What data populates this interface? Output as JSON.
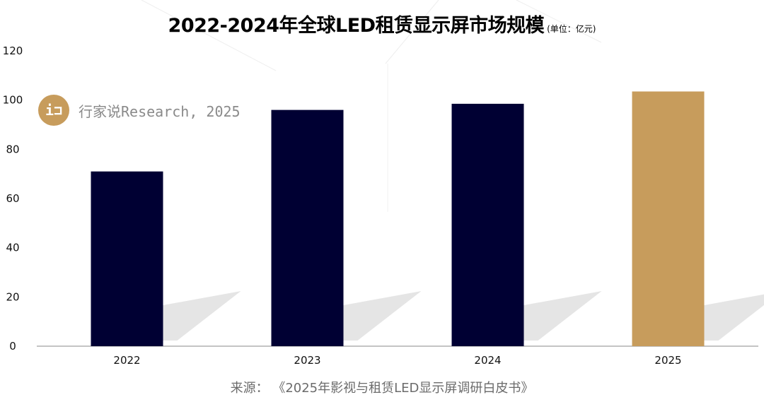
{
  "title": {
    "main": "2022-2024年全球LED租赁显示屏市场规模",
    "unit": "(单位：亿元)"
  },
  "watermark": {
    "logo_text": "i⊐",
    "text": "行家说Research, 2025"
  },
  "source": "来源：  《2025年影视与租赁LED显示屏调研白皮书》",
  "colors": {
    "bar": "#000033",
    "bar_highlight": "#c79c5c",
    "axis": "#888888",
    "shadow": "#d0d0d0"
  },
  "chart_data": {
    "type": "bar",
    "categories": [
      "2022",
      "2023",
      "2024",
      "2025"
    ],
    "values": [
      71,
      96,
      98.5,
      103.5
    ],
    "highlight_index": 3,
    "title": "2022-2024年全球LED租赁显示屏市场规模",
    "ylim": [
      0,
      120
    ],
    "yticks": [
      0,
      20,
      40,
      60,
      80,
      100,
      120
    ],
    "grid": false,
    "legend": "none"
  }
}
